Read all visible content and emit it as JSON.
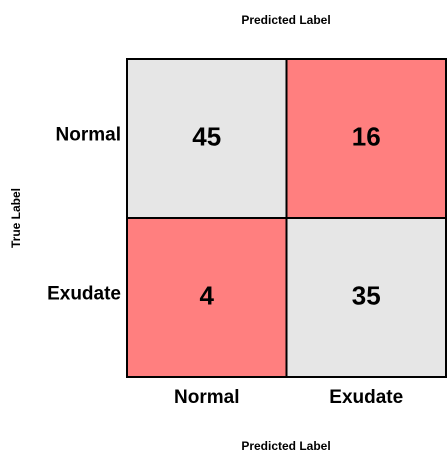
{
  "chart_data": {
    "type": "heatmap",
    "title": "Predicted Label",
    "xlabel": "Predicted Label",
    "ylabel": "True Label",
    "x_categories": [
      "Normal",
      "Exudate"
    ],
    "y_categories": [
      "Normal",
      "Exudate"
    ],
    "values": [
      [
        45,
        16
      ],
      [
        4,
        35
      ]
    ],
    "colors": [
      [
        "#e6e6e6",
        "#ff7f7f"
      ],
      [
        "#ff7f7f",
        "#e6e6e6"
      ]
    ]
  }
}
